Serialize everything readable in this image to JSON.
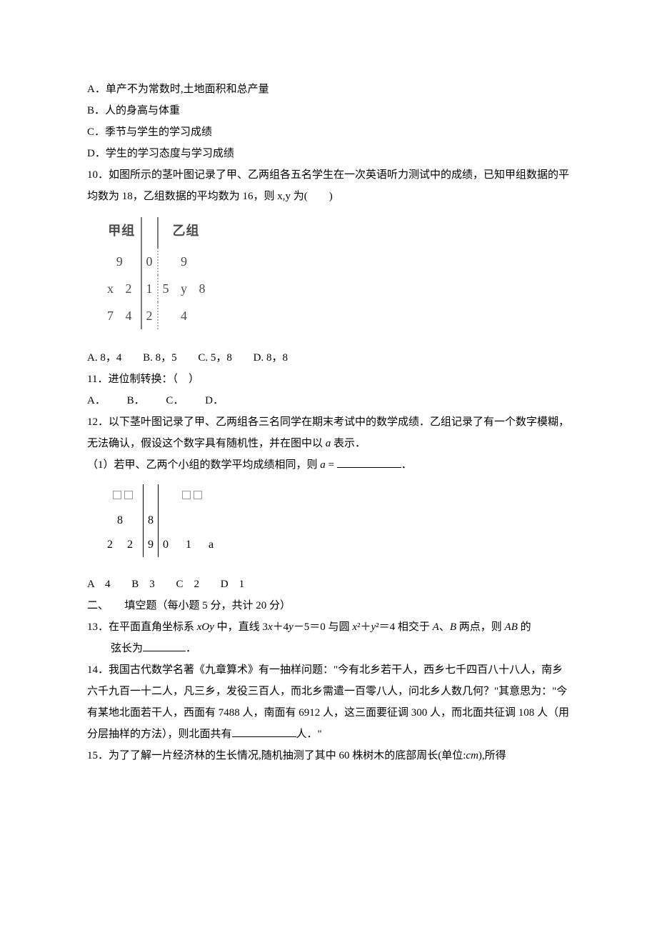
{
  "q_prev": {
    "optA": "A．单产不为常数时,土地面积和总产量",
    "optB": "B．人的身高与体重",
    "optC": "C．季节与学生的学习成绩",
    "optD": "D．学生的学习态度与学习成绩"
  },
  "q10": {
    "stem": "10．如图所示的茎叶图记录了甲、乙两组各五名学生在一次英语听力测试中的成绩，已知甲组数据的平均数为 18，乙组数据的平均数为 16，则 x,y 为(　　)",
    "header_left": "甲组",
    "header_right": "乙组",
    "rows": [
      {
        "left": "9",
        "stem": "0",
        "right": "9"
      },
      {
        "left": "x 2",
        "stem": "1",
        "right": "5 y 8"
      },
      {
        "left": "7 4",
        "stem": "2",
        "right": "4"
      }
    ],
    "choices": {
      "A": "A. 8，4",
      "B": "B. 8，5",
      "C": "C. 5，8",
      "D": "D. 8，8"
    }
  },
  "q11": {
    "stem": "11．进位制转换：（　）",
    "choices": {
      "A": "A．",
      "B": "B．",
      "C": "C．",
      "D": "D．"
    }
  },
  "q12": {
    "stem1": "12．以下茎叶图记录了甲、乙两组各三名同学在期末考试中的数学成绩．乙组记录了有一个数字模糊，无法确认，假设这个数字具有随机性，并在图中以 ",
    "a": "a",
    "stem1_tail": " 表示．",
    "sub1_pre": "（1）若甲、乙两个小组的数学平均成绩相同，则 ",
    "sub1_var": "a",
    "sub1_eq": " = ",
    "sub1_post": "．",
    "rows": [
      {
        "left": "8",
        "stem": "8",
        "right": ""
      },
      {
        "left": "2 2",
        "stem": "9",
        "right": "0 1 a"
      }
    ],
    "choices": {
      "A": "A　4",
      "B": "B　3",
      "C": "C　2",
      "D": "D　1"
    }
  },
  "section2": "二、　　填空题（每小题 5 分，共计 20 分）",
  "q13": {
    "line1_a": "13．在平面直角坐标系 ",
    "xOy": "xOy",
    "line1_b": " 中，直线 3",
    "x1": "x",
    "line1_c": "＋4",
    "y1": "y",
    "line1_d": "－5＝0 与圆 ",
    "x2": "x",
    "sq1": "²＋",
    "y2": "y",
    "sq2": "²＝4 相交于 ",
    "A": "A",
    "line1_e": "、",
    "B": "B",
    "line1_f": " 两点，则 ",
    "AB": "AB",
    "line1_g": " 的",
    "line2_a": "弦长为",
    "line2_b": "．"
  },
  "q14": {
    "p1": "14．我国古代数学名著《九章算术》有一抽样问题：\"今有北乡若干人，西乡七千四百八十八人，南乡六千九百一十二人，凡三乡，发役三百人，而北乡需遣一百零八人，问北乡人数几何？\"其意思为：\"今有某地北面若干人，西面有 7488 人，南面有 6912 人，这三面要征调 300 人，而北面共征调 108 人（用分层抽样的方法），则北面共有",
    "p2": "人．\""
  },
  "q15": {
    "p": "15．为了了解一片经济林的生长情况,随机抽测了其中 60 株树木的底部周长(单位:",
    "cm": "cm",
    "p2": "),所得"
  }
}
